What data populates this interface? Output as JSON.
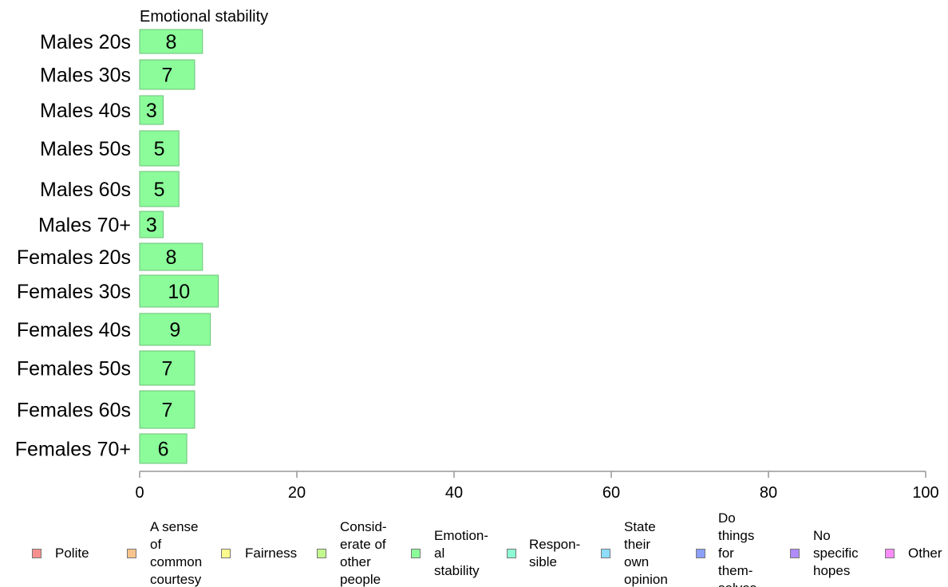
{
  "chart_data": {
    "type": "bar",
    "orientation": "horizontal",
    "title": "Emotional stability",
    "categories": [
      "Males 20s",
      "Males 30s",
      "Males 40s",
      "Males 50s",
      "Males 60s",
      "Males 70+",
      "Females 20s",
      "Females 30s",
      "Females 40s",
      "Females 50s",
      "Females 60s",
      "Females 70+"
    ],
    "values": [
      8,
      7,
      3,
      5,
      5,
      3,
      8,
      10,
      9,
      7,
      7,
      6
    ],
    "xlim": [
      0,
      100
    ],
    "xticks": [
      "0",
      "20",
      "40",
      "60",
      "80",
      "100"
    ],
    "bar_color": "#8cfc9a",
    "bar_border": "#6cc07a",
    "grid": false,
    "legend_position": "bottom",
    "legend": [
      {
        "label": "Polite",
        "color": "#f88f8f"
      },
      {
        "label": "A sense\nof\ncommon\ncourtesy",
        "color": "#f9c48b"
      },
      {
        "label": "Fairness",
        "color": "#fafa8f"
      },
      {
        "label": "Consid-\nerate of\nother\npeople",
        "color": "#c2f98e"
      },
      {
        "label": "Emotion-\nal\nstability",
        "color": "#8cfc9a"
      },
      {
        "label": "Respon-\nsible",
        "color": "#8cf8d4"
      },
      {
        "label": "State\ntheir\nown\nopinion",
        "color": "#8cdcfa"
      },
      {
        "label": "Do\nthings\nfor\nthem-\nselves",
        "color": "#8ca0fa"
      },
      {
        "label": "No\nspecific\nhopes",
        "color": "#b08cfa"
      },
      {
        "label": "Other",
        "color": "#fa8cf8"
      }
    ]
  }
}
